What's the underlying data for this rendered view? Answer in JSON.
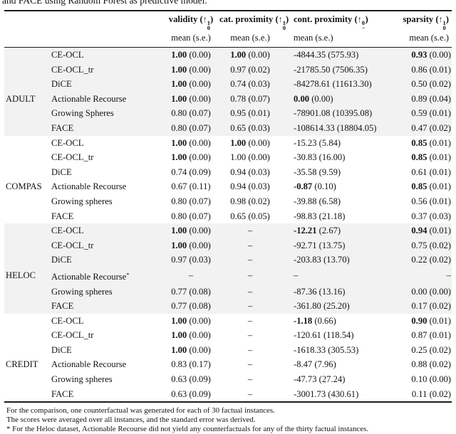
{
  "caption": "and FACE using Random Forest as predictive model.",
  "glyphs": {
    "arrow": "↑",
    "open_paren": "(",
    "close_paren": ")",
    "dash": "–"
  },
  "header": {
    "columns": [
      {
        "label": "validity",
        "sup": "1",
        "sub": "0",
        "unit": "mean (s.e.)"
      },
      {
        "label": "cat. proximity",
        "sup": "1",
        "sub": "0",
        "unit": "mean (s.e.)"
      },
      {
        "label": "cont. proximity",
        "sup": "0",
        "sub": "−",
        "unit": "mean (s.e.)"
      },
      {
        "label": "sparsity",
        "sup": "1",
        "sub": "0",
        "unit": "mean (s.e.)"
      }
    ]
  },
  "groups": [
    {
      "dataset": "ADULT",
      "shaded": true,
      "rows": [
        {
          "method": "CE-OCL",
          "cells": [
            [
              "1.00",
              "0.00",
              1
            ],
            [
              "1.00",
              "0.00",
              1
            ],
            [
              "-4844.35",
              "575.93",
              0
            ],
            [
              "0.93",
              "0.00",
              1
            ]
          ]
        },
        {
          "method": "CE-OCL_tr",
          "cells": [
            [
              "1.00",
              "0.00",
              1
            ],
            [
              "0.97",
              "0.02",
              0
            ],
            [
              "-21785.50",
              "7506.35",
              0
            ],
            [
              "0.86",
              "0.01",
              0
            ]
          ]
        },
        {
          "method": "DiCE",
          "cells": [
            [
              "1.00",
              "0.00",
              1
            ],
            [
              "0.74",
              "0.03",
              0
            ],
            [
              "-84278.61",
              "11613.30",
              0
            ],
            [
              "0.50",
              "0.02",
              0
            ]
          ]
        },
        {
          "method": "Actionable Recourse",
          "cells": [
            [
              "1.00",
              "0.00",
              1
            ],
            [
              "0.78",
              "0.07",
              0
            ],
            [
              "0.00",
              "0.00",
              1
            ],
            [
              "0.89",
              "0.04",
              0
            ]
          ]
        },
        {
          "method": "Growing Spheres",
          "cells": [
            [
              "0.80",
              "0.07",
              0
            ],
            [
              "0.95",
              "0.01",
              0
            ],
            [
              "-78901.08",
              "10395.08",
              0
            ],
            [
              "0.59",
              "0.01",
              0
            ]
          ]
        },
        {
          "method": "FACE",
          "cells": [
            [
              "0.80",
              "0.07",
              0
            ],
            [
              "0.65",
              "0.03",
              0
            ],
            [
              "-108614.33",
              "18804.05",
              0
            ],
            [
              "0.47",
              "0.02",
              0
            ]
          ]
        }
      ]
    },
    {
      "dataset": "COMPAS",
      "shaded": false,
      "rows": [
        {
          "method": "CE-OCL",
          "cells": [
            [
              "1.00",
              "0.00",
              1
            ],
            [
              "1.00",
              "0.00",
              1
            ],
            [
              "-15.23",
              "5.84",
              0
            ],
            [
              "0.85",
              "0.01",
              1
            ]
          ]
        },
        {
          "method": "CE-OCL_tr",
          "cells": [
            [
              "1.00",
              "0.00",
              1
            ],
            [
              "1.00",
              "0.00",
              0
            ],
            [
              "-30.83",
              "16.00",
              0
            ],
            [
              "0.85",
              "0.01",
              1
            ]
          ]
        },
        {
          "method": "DiCE",
          "cells": [
            [
              "0.74",
              "0.09",
              0
            ],
            [
              "0.94",
              "0.03",
              0
            ],
            [
              "-35.58",
              "9.59",
              0
            ],
            [
              "0.61",
              "0.01",
              0
            ]
          ]
        },
        {
          "method": "Actionable Recourse",
          "cells": [
            [
              "0.67",
              "0.11",
              0
            ],
            [
              "0.94",
              "0.03",
              0
            ],
            [
              "-0.87",
              "0.10",
              1
            ],
            [
              "0.85",
              "0.01",
              1
            ]
          ]
        },
        {
          "method": "Growing spheres",
          "cells": [
            [
              "0.80",
              "0.07",
              0
            ],
            [
              "0.98",
              "0.02",
              0
            ],
            [
              "-39.88",
              "6.58",
              0
            ],
            [
              "0.56",
              "0.01",
              0
            ]
          ]
        },
        {
          "method": "FACE",
          "cells": [
            [
              "0.80",
              "0.07",
              0
            ],
            [
              "0.65",
              "0.05",
              0
            ],
            [
              "-98.83",
              "21.18",
              0
            ],
            [
              "0.37",
              "0.03",
              0
            ]
          ]
        }
      ]
    },
    {
      "dataset": "HELOC",
      "shaded": true,
      "rows": [
        {
          "method": "CE-OCL",
          "cells": [
            [
              "1.00",
              "0.00",
              1
            ],
            null,
            [
              "-12.21",
              "2.67",
              1
            ],
            [
              "0.94",
              "0.01",
              1
            ]
          ]
        },
        {
          "method": "CE-OCL_tr",
          "cells": [
            [
              "1.00",
              "0.00",
              1
            ],
            null,
            [
              "-92.71",
              "13.75",
              0
            ],
            [
              "0.75",
              "0.02",
              0
            ]
          ]
        },
        {
          "method": "DiCE",
          "cells": [
            [
              "0.97",
              "0.03",
              0
            ],
            null,
            [
              "-203.83",
              "13.70",
              0
            ],
            [
              "0.22",
              "0.02",
              0
            ]
          ]
        },
        {
          "method": "Actionable Recourse",
          "method_sup": "*",
          "cells": [
            null,
            null,
            null,
            null
          ]
        },
        {
          "method": "Growing spheres",
          "cells": [
            [
              "0.77",
              "0.08",
              0
            ],
            null,
            [
              "-87.36",
              "13.16",
              0
            ],
            [
              "0.00",
              "0.00",
              0
            ]
          ]
        },
        {
          "method": "FACE",
          "cells": [
            [
              "0.77",
              "0.08",
              0
            ],
            null,
            [
              "-361.80",
              "25.20",
              0
            ],
            [
              "0.17",
              "0.02",
              0
            ]
          ]
        }
      ]
    },
    {
      "dataset": "CREDIT",
      "shaded": false,
      "rows": [
        {
          "method": "CE-OCL",
          "cells": [
            [
              "1.00",
              "0.00",
              1
            ],
            null,
            [
              "-1.18",
              "0.66",
              1
            ],
            [
              "0.90",
              "0.01",
              1
            ]
          ]
        },
        {
          "method": "CE-OCL_tr",
          "cells": [
            [
              "1.00",
              "0.00",
              1
            ],
            null,
            [
              "-120.61",
              "118.54",
              0
            ],
            [
              "0.87",
              "0.01",
              0
            ]
          ]
        },
        {
          "method": "DiCE",
          "cells": [
            [
              "1.00",
              "0.00",
              1
            ],
            null,
            [
              "-1618.33",
              "305.53",
              0
            ],
            [
              "0.25",
              "0.02",
              0
            ]
          ]
        },
        {
          "method": "Actionable Recourse",
          "cells": [
            [
              "0.83",
              "0.17",
              0
            ],
            null,
            [
              "-8.47",
              "7.96",
              0
            ],
            [
              "0.88",
              "0.02",
              0
            ]
          ]
        },
        {
          "method": "Growing spheres",
          "cells": [
            [
              "0.63",
              "0.09",
              0
            ],
            null,
            [
              "-47.73",
              "27.24",
              0
            ],
            [
              "0.10",
              "0.00",
              0
            ]
          ]
        },
        {
          "method": "FACE",
          "cells": [
            [
              "0.63",
              "0.09",
              0
            ],
            null,
            [
              "-3001.73",
              "430.61",
              0
            ],
            [
              "0.11",
              "0.02",
              0
            ]
          ]
        }
      ]
    }
  ],
  "footnotes": [
    "For the comparison, one counterfactual was generated for each of 30 factual instances.",
    "The scores were averaged over all instances, and the standard error was derived.",
    "* For the Heloc dataset, Actionable Recourse did not yield any counterfactuals for any of the thirty factual instances."
  ],
  "colors": {
    "shaded_row": "#f2f2f2",
    "rule": "#1b1b1b",
    "text": "#141414"
  }
}
